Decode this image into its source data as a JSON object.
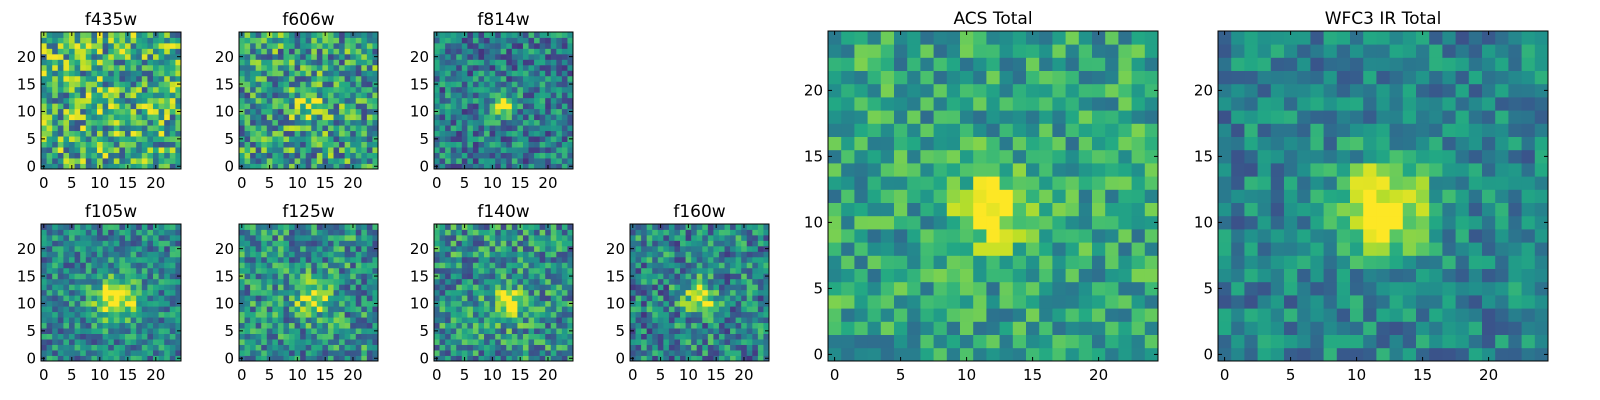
{
  "chart_data": [
    {
      "type": "heatmap",
      "title": "f435w",
      "grid_size": 25,
      "colormap": "viridis",
      "xlim": [
        0,
        24
      ],
      "ylim": [
        0,
        24
      ],
      "xticks": [
        0,
        5,
        10,
        15,
        20
      ],
      "yticks": [
        0,
        5,
        10,
        15,
        20
      ],
      "peak": [
        12,
        11
      ],
      "peak_strength": 0.05,
      "peak_sigma": 2.5,
      "noise_level": 0.75,
      "base": 0.62,
      "seed": 11
    },
    {
      "type": "heatmap",
      "title": "f606w",
      "grid_size": 25,
      "colormap": "viridis",
      "xlim": [
        0,
        24
      ],
      "ylim": [
        0,
        24
      ],
      "xticks": [
        0,
        5,
        10,
        15,
        20
      ],
      "yticks": [
        0,
        5,
        10,
        15,
        20
      ],
      "peak": [
        12,
        11
      ],
      "peak_strength": 0.35,
      "peak_sigma": 2.0,
      "noise_level": 0.7,
      "base": 0.55,
      "seed": 23
    },
    {
      "type": "heatmap",
      "title": "f814w",
      "grid_size": 25,
      "colormap": "viridis",
      "xlim": [
        0,
        24
      ],
      "ylim": [
        0,
        24
      ],
      "xticks": [
        0,
        5,
        10,
        15,
        20
      ],
      "yticks": [
        0,
        5,
        10,
        15,
        20
      ],
      "peak": [
        12,
        11
      ],
      "peak_strength": 0.6,
      "peak_sigma": 1.5,
      "noise_level": 0.55,
      "base": 0.42,
      "seed": 37
    },
    {
      "type": "heatmap",
      "title": "f105w",
      "grid_size": 25,
      "colormap": "viridis",
      "xlim": [
        0,
        24
      ],
      "ylim": [
        0,
        24
      ],
      "xticks": [
        0,
        5,
        10,
        15,
        20
      ],
      "yticks": [
        0,
        5,
        10,
        15,
        20
      ],
      "peak": [
        13,
        11
      ],
      "peak_strength": 0.6,
      "peak_sigma": 2.8,
      "noise_level": 0.5,
      "base": 0.45,
      "seed": 41
    },
    {
      "type": "heatmap",
      "title": "f125w",
      "grid_size": 25,
      "colormap": "viridis",
      "xlim": [
        0,
        24
      ],
      "ylim": [
        0,
        24
      ],
      "xticks": [
        0,
        5,
        10,
        15,
        20
      ],
      "yticks": [
        0,
        5,
        10,
        15,
        20
      ],
      "peak": [
        13,
        11
      ],
      "peak_strength": 0.45,
      "peak_sigma": 2.2,
      "noise_level": 0.6,
      "base": 0.5,
      "seed": 53
    },
    {
      "type": "heatmap",
      "title": "f140w",
      "grid_size": 25,
      "colormap": "viridis",
      "xlim": [
        0,
        24
      ],
      "ylim": [
        0,
        24
      ],
      "xticks": [
        0,
        5,
        10,
        15,
        20
      ],
      "yticks": [
        0,
        5,
        10,
        15,
        20
      ],
      "peak": [
        13,
        10
      ],
      "peak_strength": 0.45,
      "peak_sigma": 2.2,
      "noise_level": 0.6,
      "base": 0.5,
      "seed": 67
    },
    {
      "type": "heatmap",
      "title": "f160w",
      "grid_size": 25,
      "colormap": "viridis",
      "xlim": [
        0,
        24
      ],
      "ylim": [
        0,
        24
      ],
      "xticks": [
        0,
        5,
        10,
        15,
        20
      ],
      "yticks": [
        0,
        5,
        10,
        15,
        20
      ],
      "peak": [
        12,
        11
      ],
      "peak_strength": 0.55,
      "peak_sigma": 2.0,
      "noise_level": 0.6,
      "base": 0.45,
      "seed": 79
    },
    {
      "type": "heatmap",
      "title": "ACS Total",
      "grid_size": 25,
      "colormap": "viridis",
      "xlim": [
        0,
        24
      ],
      "ylim": [
        0,
        24
      ],
      "xticks": [
        0,
        5,
        10,
        15,
        20
      ],
      "yticks": [
        0,
        5,
        10,
        15,
        20
      ],
      "peak": [
        12,
        11
      ],
      "peak_strength": 0.55,
      "peak_sigma": 1.8,
      "noise_level": 0.45,
      "base": 0.58,
      "seed": 97
    },
    {
      "type": "heatmap",
      "title": "WFC3 IR Total",
      "grid_size": 25,
      "colormap": "viridis",
      "xlim": [
        0,
        24
      ],
      "ylim": [
        0,
        24
      ],
      "xticks": [
        0,
        5,
        10,
        15,
        20
      ],
      "yticks": [
        0,
        5,
        10,
        15,
        20
      ],
      "peak": [
        12,
        11
      ],
      "peak_strength": 0.65,
      "peak_sigma": 2.5,
      "noise_level": 0.4,
      "base": 0.45,
      "seed": 113
    }
  ]
}
